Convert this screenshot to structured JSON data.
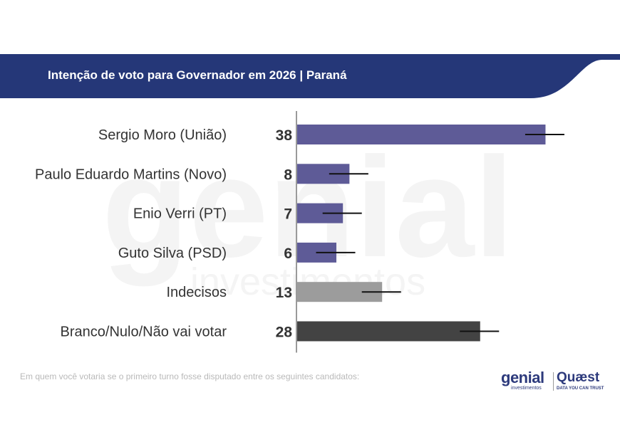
{
  "header": {
    "title": "Intenção de voto para Governador em 2026 | Paraná",
    "color": "#253778"
  },
  "watermark": {
    "brand": "genial",
    "sub": "investimentos"
  },
  "chart_data": {
    "type": "bar",
    "orientation": "horizontal",
    "title": "Intenção de voto para Governador em 2026 | Paraná",
    "categories": [
      "Sergio Moro (União)",
      "Paulo Eduardo Martins (Novo)",
      "Enio Verri (PT)",
      "Guto Silva (PSD)",
      "Indecisos",
      "Branco/Nulo/Não vai votar"
    ],
    "values": [
      38,
      8,
      7,
      6,
      13,
      28
    ],
    "value_labels": [
      "38",
      "8",
      "7",
      "6",
      "13",
      "28"
    ],
    "error_margin": 3,
    "colors": [
      "#5e5b97",
      "#5e5b97",
      "#5e5b97",
      "#5e5b97",
      "#9c9c9c",
      "#434343"
    ],
    "xlim": [
      0,
      50
    ],
    "grid": false,
    "legend": "none"
  },
  "footer": {
    "note": "Em quem você votaria se o primeiro turno fosse disputado entre os seguintes candidatos:",
    "logo_genial": "genial",
    "logo_genial_sub": "investimentos",
    "logo_quaest": "Quæst",
    "logo_quaest_sub": "DATA YOU CAN TRUST"
  }
}
